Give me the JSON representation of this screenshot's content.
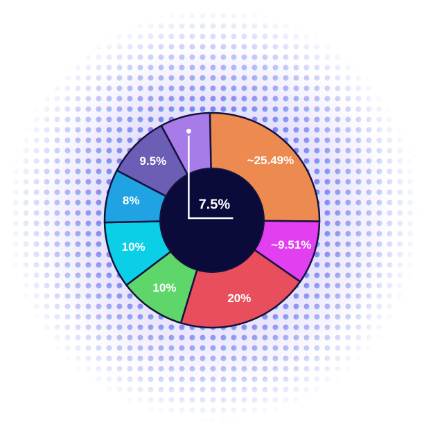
{
  "chart_data": {
    "type": "pie",
    "categories": [
      null,
      null,
      null,
      null,
      null,
      null,
      null,
      null
    ],
    "values": [
      25.49,
      9.51,
      20,
      10,
      10,
      8,
      9.5,
      7.5
    ],
    "value_labels": [
      "~25.49%",
      "~9.51%",
      "20%",
      "10%",
      "10%",
      "8%",
      "9.5%",
      "7.5%"
    ],
    "colors": [
      "#ec8a4f",
      "#e23ff0",
      "#e84e5c",
      "#5fd66a",
      "#0bcfe6",
      "#1fa3e3",
      "#6c5db5",
      "#a77ce8"
    ]
  }
}
